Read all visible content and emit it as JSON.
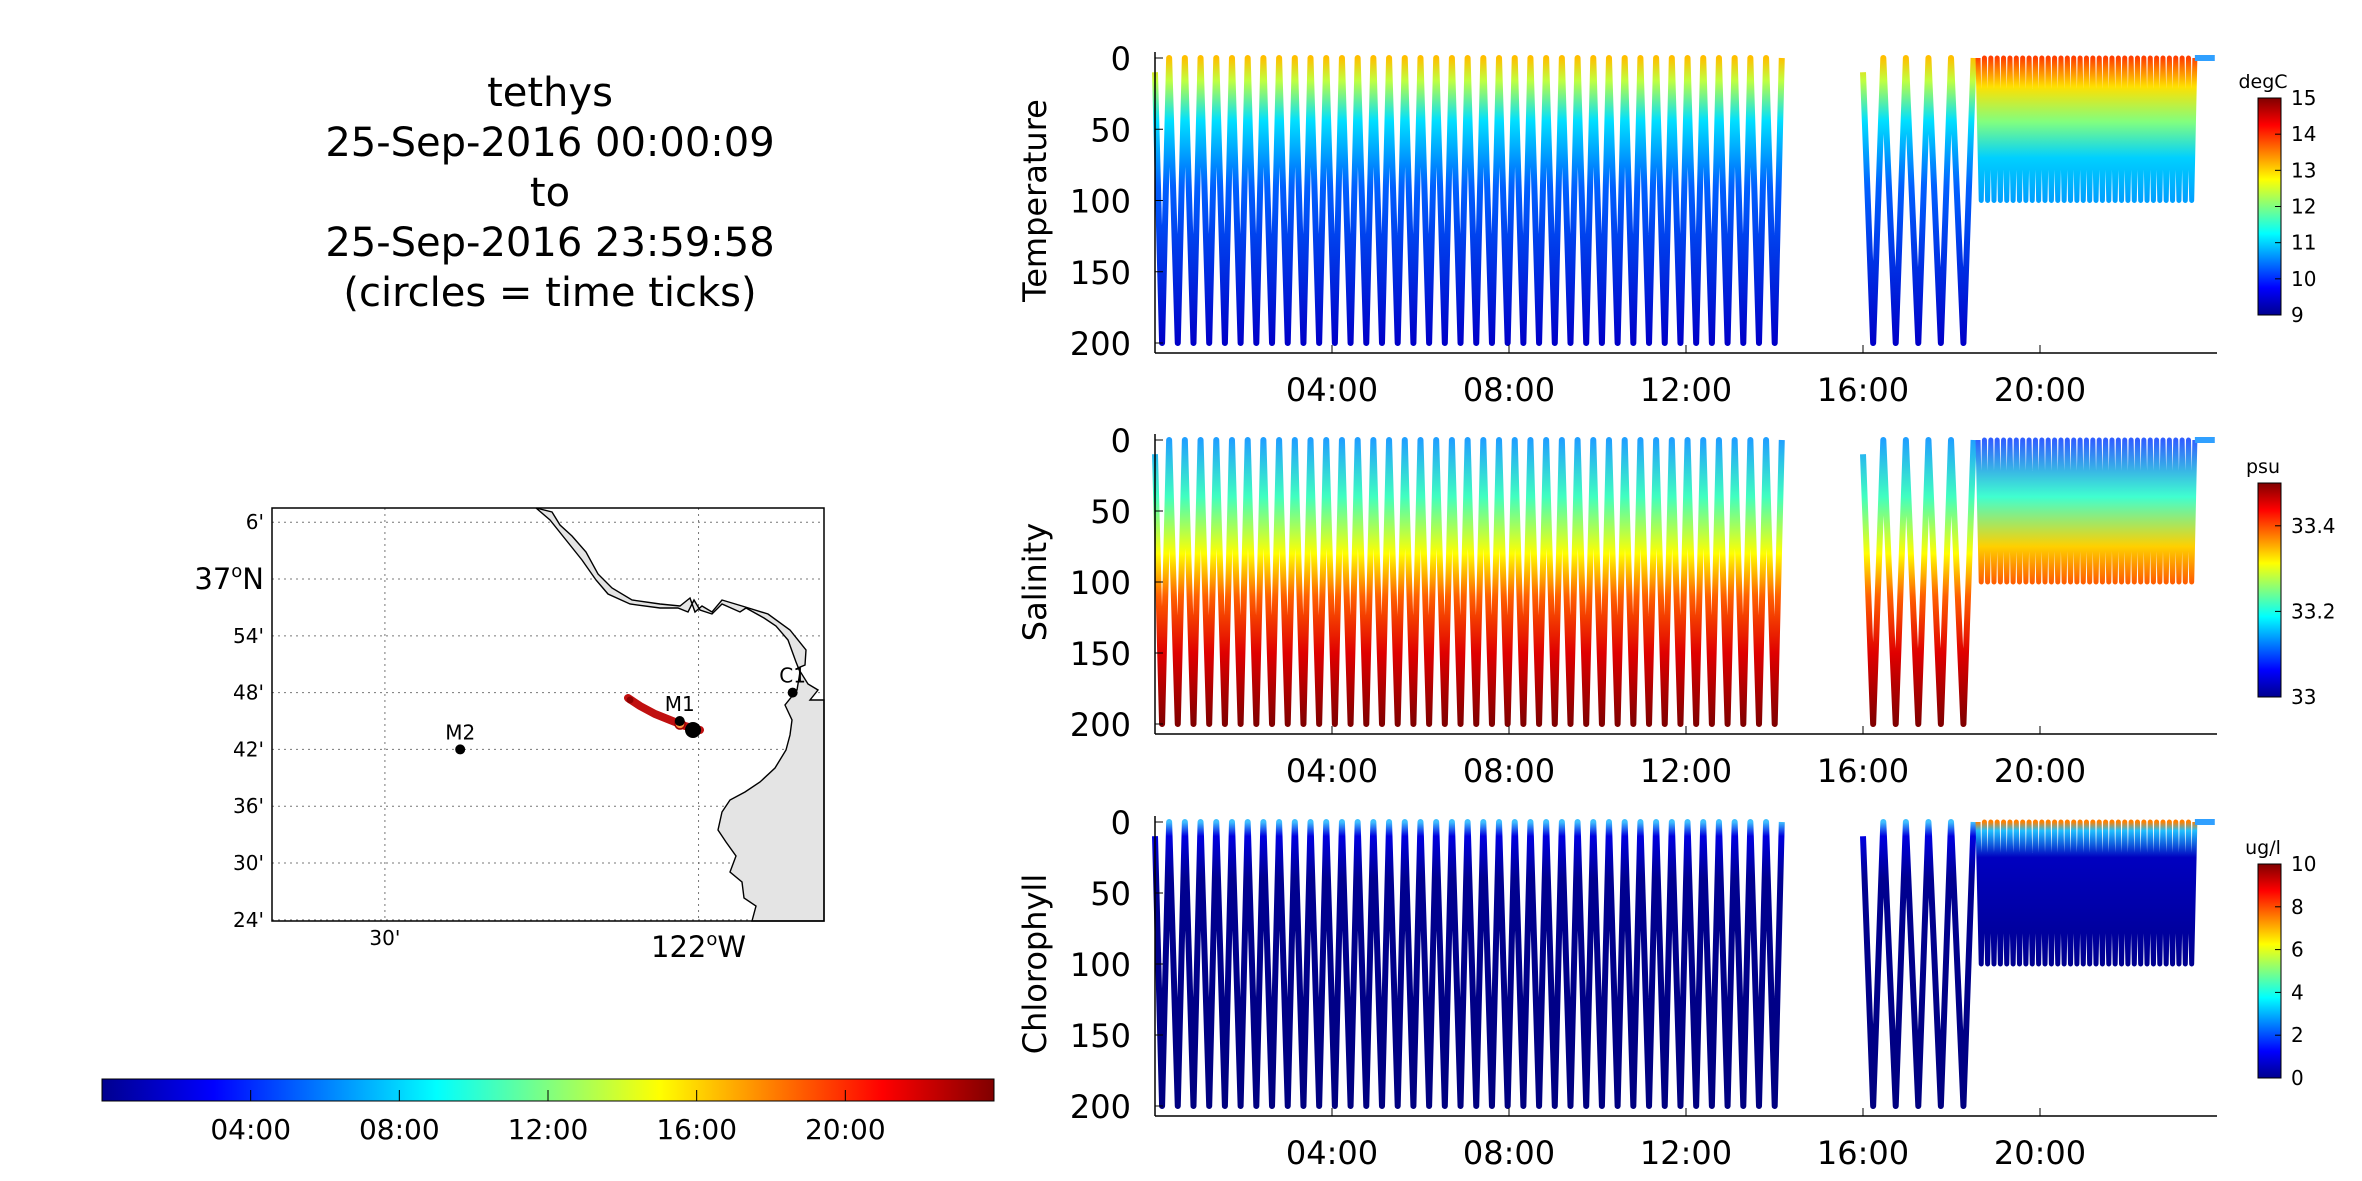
{
  "title": {
    "vehicle": "tethys",
    "start": "25-Sep-2016 00:00:09",
    "to": "to",
    "end": "25-Sep-2016 23:59:58",
    "note": "(circles = time ticks)"
  },
  "map": {
    "lat_ticks": [
      "6'",
      "37°N",
      "54'",
      "48'",
      "42'",
      "36'",
      "30'",
      "24'"
    ],
    "lat_values": [
      37.1,
      37.0,
      36.9,
      36.8,
      36.7,
      36.6,
      36.5,
      36.4
    ],
    "lon_ticks": [
      "30'",
      "122°W"
    ],
    "lon_values": [
      -122.5,
      -122.0
    ],
    "stations": [
      {
        "name": "M1",
        "lat": 36.75,
        "lon": -122.03
      },
      {
        "name": "M2",
        "lat": 36.7,
        "lon": -122.38
      },
      {
        "name": "C1",
        "lat": 36.8,
        "lon": -121.85
      }
    ]
  },
  "time_colorbar": {
    "tick_labels": [
      "04:00",
      "08:00",
      "12:00",
      "16:00",
      "20:00"
    ],
    "tick_hours": [
      4,
      8,
      12,
      16,
      20
    ],
    "range_hours": [
      0,
      24
    ]
  },
  "chart_data": [
    {
      "type": "scatter",
      "ylabel": "Temperature",
      "unit": "degC",
      "yticks": [
        0,
        50,
        100,
        150,
        200
      ],
      "ylim": [
        0,
        200
      ],
      "xticks": [
        "04:00",
        "08:00",
        "12:00",
        "16:00",
        "20:00"
      ],
      "x_hours": [
        4,
        8,
        12,
        16,
        20
      ],
      "xlim_hours": [
        0,
        24
      ],
      "cbar_ticks": [
        9,
        10,
        11,
        12,
        13,
        14,
        15
      ],
      "cbar_range": [
        9,
        15
      ]
    },
    {
      "type": "scatter",
      "ylabel": "Salinity",
      "unit": "psu",
      "yticks": [
        0,
        50,
        100,
        150,
        200
      ],
      "ylim": [
        0,
        200
      ],
      "xticks": [
        "04:00",
        "08:00",
        "12:00",
        "16:00",
        "20:00"
      ],
      "x_hours": [
        4,
        8,
        12,
        16,
        20
      ],
      "xlim_hours": [
        0,
        24
      ],
      "cbar_ticks": [
        33,
        33.2,
        33.4
      ],
      "cbar_range": [
        33,
        33.5
      ]
    },
    {
      "type": "scatter",
      "ylabel": "Chlorophyll",
      "unit": "ug/l",
      "yticks": [
        0,
        50,
        100,
        150,
        200
      ],
      "ylim": [
        0,
        200
      ],
      "xticks": [
        "04:00",
        "08:00",
        "12:00",
        "16:00",
        "20:00"
      ],
      "x_hours": [
        4,
        8,
        12,
        16,
        20
      ],
      "xlim_hours": [
        0,
        24
      ],
      "cbar_ticks": [
        0,
        2,
        4,
        6,
        8,
        10
      ],
      "cbar_range": [
        0,
        10
      ]
    }
  ]
}
